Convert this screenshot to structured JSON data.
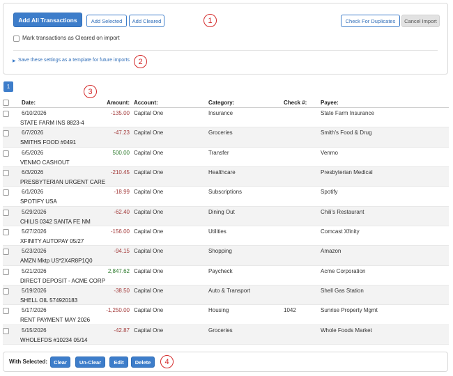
{
  "top_panel": {
    "add_all_label": "Add All Transactions",
    "add_selected_label": "Add Selected",
    "add_cleared_label": "Add Cleared",
    "check_duplicates_label": "Check For Duplicates",
    "cancel_import_label": "Cancel Import",
    "mark_cleared_label": "Mark transactions as Cleared on import",
    "save_template_label": "Save these settings as a template for future imports"
  },
  "callouts": [
    "1",
    "2",
    "3",
    "4"
  ],
  "pager": {
    "current_page": "1"
  },
  "table": {
    "headers": {
      "date": "Date:",
      "amount": "Amount:",
      "account": "Account:",
      "category": "Category:",
      "check": "Check #:",
      "payee": "Payee:"
    },
    "rows": [
      {
        "date": "6/10/2026",
        "amount": "-135.00",
        "sign": "neg",
        "account": "Capital One",
        "category": "Insurance",
        "check": "",
        "payee": "State Farm Insurance",
        "description": "STATE FARM INS 8823-4"
      },
      {
        "date": "6/7/2026",
        "amount": "-47.23",
        "sign": "neg",
        "account": "Capital One",
        "category": "Groceries",
        "check": "",
        "payee": "Smith's Food & Drug",
        "description": "SMITHS FOOD #0491"
      },
      {
        "date": "6/5/2026",
        "amount": "500.00",
        "sign": "pos",
        "account": "Capital One",
        "category": "Transfer",
        "check": "",
        "payee": "Venmo",
        "description": "VENMO CASHOUT"
      },
      {
        "date": "6/3/2026",
        "amount": "-210.45",
        "sign": "neg",
        "account": "Capital One",
        "category": "Healthcare",
        "check": "",
        "payee": "Presbyterian Medical",
        "description": "PRESBYTERIAN URGENT CARE"
      },
      {
        "date": "6/1/2026",
        "amount": "-18.99",
        "sign": "neg",
        "account": "Capital One",
        "category": "Subscriptions",
        "check": "",
        "payee": "Spotify",
        "description": "SPOTIFY USA"
      },
      {
        "date": "5/29/2026",
        "amount": "-62.40",
        "sign": "neg",
        "account": "Capital One",
        "category": "Dining Out",
        "check": "",
        "payee": "Chili's Restaurant",
        "description": "CHILIS 0342 SANTA FE NM"
      },
      {
        "date": "5/27/2026",
        "amount": "-156.00",
        "sign": "neg",
        "account": "Capital One",
        "category": "Utilities",
        "check": "",
        "payee": "Comcast Xfinity",
        "description": "XFINITY AUTOPAY 05/27"
      },
      {
        "date": "5/23/2026",
        "amount": "-94.15",
        "sign": "neg",
        "account": "Capital One",
        "category": "Shopping",
        "check": "",
        "payee": "Amazon",
        "description": "AMZN Mktp US*2X4R8P1Q0"
      },
      {
        "date": "5/21/2026",
        "amount": "2,847.62",
        "sign": "pos",
        "account": "Capital One",
        "category": "Paycheck",
        "check": "",
        "payee": "Acme Corporation",
        "description": "DIRECT DEPOSIT - ACME CORP"
      },
      {
        "date": "5/19/2026",
        "amount": "-38.50",
        "sign": "neg",
        "account": "Capital One",
        "category": "Auto & Transport",
        "check": "",
        "payee": "Shell Gas Station",
        "description": "SHELL OIL 574920183"
      },
      {
        "date": "5/17/2026",
        "amount": "-1,250.00",
        "sign": "neg",
        "account": "Capital One",
        "category": "Housing",
        "check": "1042",
        "payee": "Sunrise Property Mgmt",
        "description": "RENT PAYMENT MAY 2026"
      },
      {
        "date": "5/15/2026",
        "amount": "-42.87",
        "sign": "neg",
        "account": "Capital One",
        "category": "Groceries",
        "check": "",
        "payee": "Whole Foods Market",
        "description": "WHOLEFDS #10234 05/14"
      }
    ]
  },
  "footer": {
    "with_selected_label": "With Selected:",
    "clear_label": "Clear",
    "unclear_label": "Un-Clear",
    "edit_label": "Edit",
    "delete_label": "Delete"
  },
  "colors": {
    "primary": "#3d7dca",
    "negative_amount": "#a33a3a",
    "positive_amount": "#2c7a2c",
    "callout": "#d42a2a"
  }
}
